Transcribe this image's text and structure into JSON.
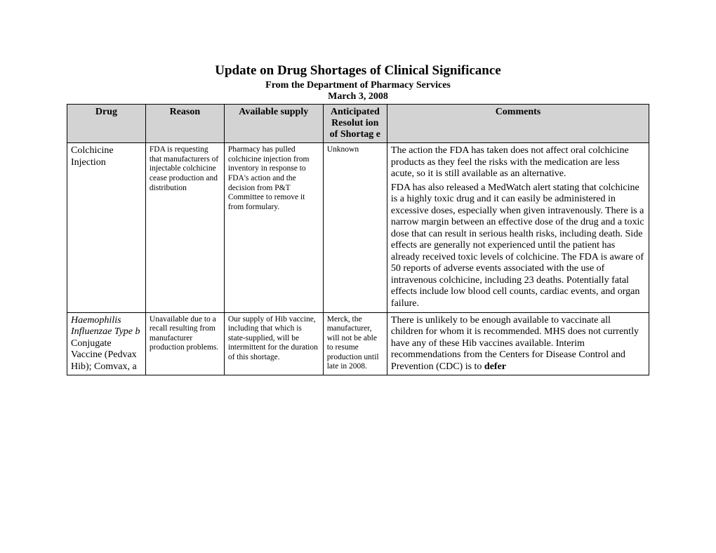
{
  "header": {
    "title": "Update on Drug Shortages of Clinical Significance",
    "subtitle": "From the Department of Pharmacy Services",
    "date": "March 3, 2008"
  },
  "table": {
    "columns": {
      "drug": "Drug",
      "reason": "Reason",
      "supply": "Available supply",
      "anticipated": "Anticipated Resolut ion of Shortag e",
      "comments": "Comments"
    },
    "rows": [
      {
        "drug": "Colchicine Injection",
        "reason": "FDA is requesting that manufacturers of injectable colchicine cease production and distribution",
        "supply": "Pharmacy has pulled colchicine injection from inventory in response to FDA's action and the decision from P&T Committee to remove it from formulary.",
        "anticipated": "Unknown",
        "comments_p1": "The action the FDA has taken does not affect oral colchicine products as they feel the risks with the medication are less acute, so it is still available as an alternative.",
        "comments_p2": "FDA has also released a MedWatch alert stating that colchicine is a highly toxic drug and it can easily be administered in excessive doses, especially when given intravenously. There is a narrow margin between an effective dose of the drug and a toxic dose that can result in serious health risks, including death. Side effects are generally not experienced until the patient has already received toxic levels of colchicine. The FDA is aware of 50 reports of adverse events associated with the use of intravenous colchicine, including 23 deaths. Potentially fatal effects include low blood cell counts, cardiac events, and organ failure."
      },
      {
        "drug_italic": "Haemophilis Influenzae Type b",
        "drug_rest": " Conjugate Vaccine (Pedvax Hib); Comvax, a",
        "reason": "Unavailable due to a recall resulting from manufacturer production problems.",
        "supply": "Our supply of Hib vaccine, including that which is state-supplied, will be intermittent for the duration of this shortage.",
        "anticipated": "Merck, the manufacturer, will not be able to resume production until late in 2008.",
        "comments_pre": "There is unlikely to be enough available to vaccinate all children for whom it is recommended.  MHS does not currently have any of these Hib vaccines available. Interim recommendations from the Centers for Disease Control and Prevention (CDC) is to ",
        "comments_bold": "defer"
      }
    ]
  }
}
